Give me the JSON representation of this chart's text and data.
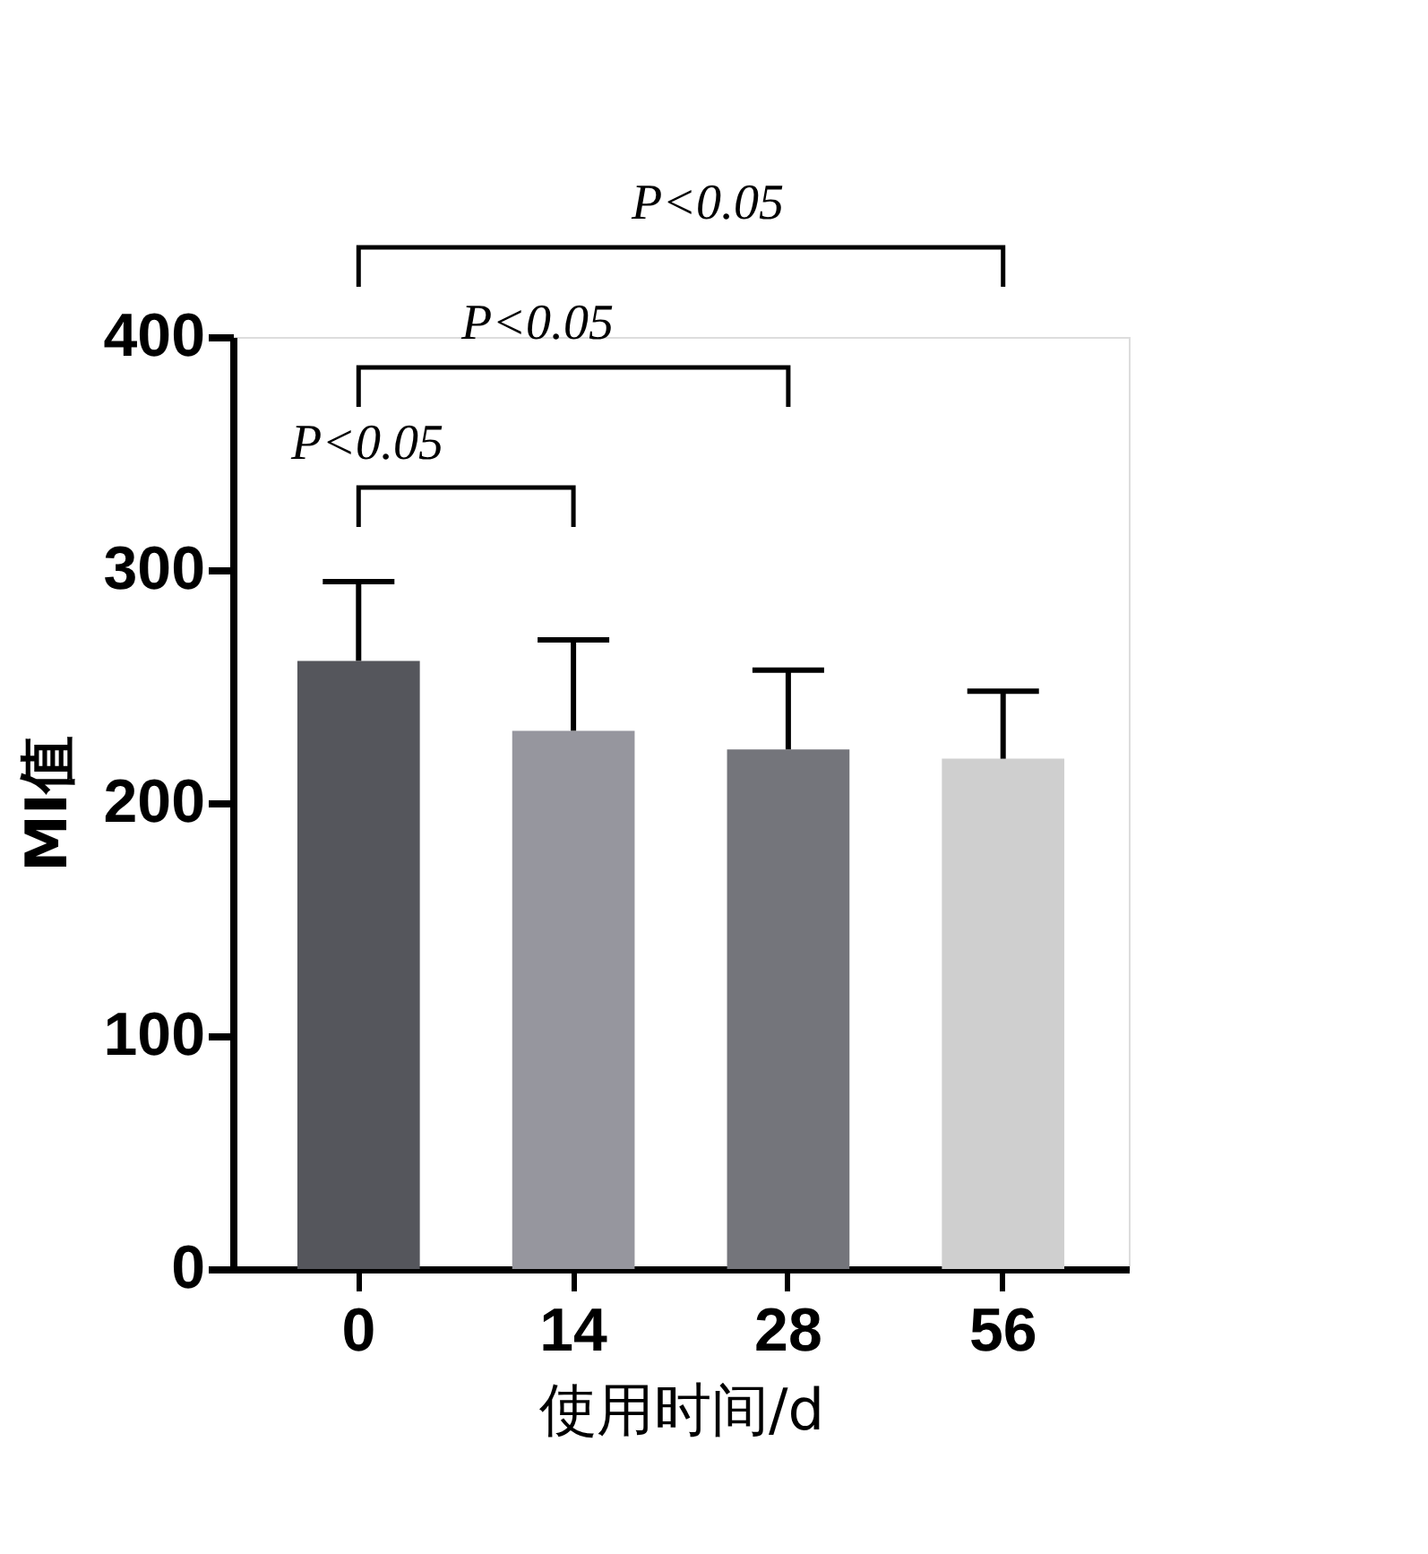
{
  "chart_data": {
    "type": "bar",
    "xlabel": "使用时间/d",
    "ylabel": "MI值",
    "categories": [
      "0",
      "14",
      "28",
      "56"
    ],
    "values": [
      261,
      231,
      223,
      219
    ],
    "errors": [
      [
        261,
        295
      ],
      [
        231,
        270
      ],
      [
        223,
        257
      ],
      [
        219,
        248
      ]
    ],
    "colors": [
      "#55565c",
      "#96969e",
      "#74757b",
      "#cfcfcf"
    ],
    "ylim": [
      0,
      400
    ],
    "yticks": [
      0,
      100,
      200,
      300,
      400
    ],
    "grid": false,
    "legend": false,
    "annotations": [
      "P<0.05",
      "P<0.05",
      "P<0.05"
    ]
  }
}
